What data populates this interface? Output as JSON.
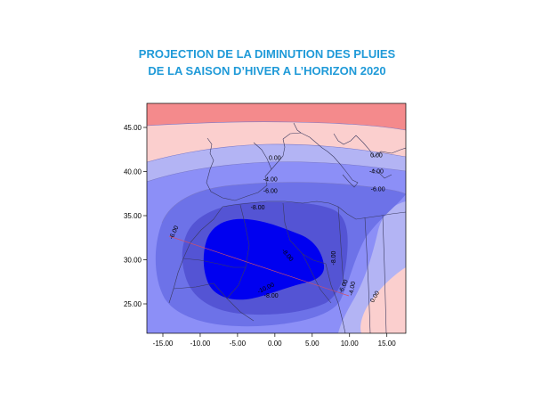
{
  "title": {
    "line1": "PROJECTION DE LA DIMINUTION DES PLUIES",
    "line2": "DE LA SAISON D’HIVER A L’HORIZON 2020"
  },
  "map": {
    "x_ticks": [
      "-15.00",
      "-10.00",
      "-5.00",
      "0.00",
      "5.00",
      "10.00",
      "15.00"
    ],
    "y_ticks": [
      "45.00",
      "40.00",
      "35.00",
      "30.00",
      "25.00"
    ],
    "contour_labels": [
      {
        "text": "0.00",
        "lon": 0.0,
        "lat": 41.3,
        "rot": 0
      },
      {
        "text": "0.00",
        "lon": 13.6,
        "lat": 41.6,
        "rot": 0
      },
      {
        "text": "-4.00",
        "lon": -0.6,
        "lat": 38.9,
        "rot": 0
      },
      {
        "text": "-6.00",
        "lon": -0.6,
        "lat": 37.6,
        "rot": 0
      },
      {
        "text": "-4.00",
        "lon": 13.6,
        "lat": 39.8,
        "rot": 0
      },
      {
        "text": "-6.00",
        "lon": 13.8,
        "lat": 37.8,
        "rot": 0
      },
      {
        "text": "-8.00",
        "lon": -2.3,
        "lat": 35.7,
        "rot": 0
      },
      {
        "text": "-6.00",
        "lon": -13.3,
        "lat": 33.0,
        "rot": -65
      },
      {
        "text": "-8.00",
        "lon": 1.5,
        "lat": 30.4,
        "rot": 50
      },
      {
        "text": "-8.00",
        "lon": 8.1,
        "lat": 30.2,
        "rot": -90
      },
      {
        "text": "-8.00",
        "lon": -0.5,
        "lat": 25.7,
        "rot": 0
      },
      {
        "text": "-10.00",
        "lon": -1.1,
        "lat": 26.6,
        "rot": -25
      },
      {
        "text": "-6.00",
        "lon": 9.4,
        "lat": 26.9,
        "rot": -65
      },
      {
        "text": "-4.00",
        "lon": 10.6,
        "lat": 26.7,
        "rot": -80
      },
      {
        "text": "0.00",
        "lon": 13.6,
        "lat": 25.7,
        "rot": -60
      }
    ]
  },
  "colors": {
    "title": "#1f9ad8",
    "positive": "#f48a8c",
    "near_zero": "#fbcfce",
    "minus_2": "#b3b4f4",
    "minus_4": "#8c8ff7",
    "minus_6": "#6d72e8",
    "minus_8": "#5454d4",
    "minus_10": "#0000f0"
  }
}
